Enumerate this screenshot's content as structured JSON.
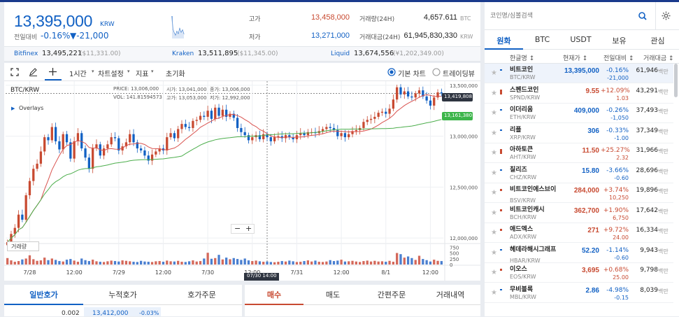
{
  "header": {
    "price": "13,395,000",
    "unit": "KRW",
    "change_label": "전일대비",
    "change_pct": "-0.16%",
    "change_abs": "▼-21,000",
    "high_label": "고가",
    "high_value": "13,458,000",
    "low_label": "저가",
    "low_value": "13,271,000",
    "vol_label": "거래량(24H)",
    "vol_value": "4,657.611",
    "vol_unit": "BTC",
    "amt_label": "거래대금(24H)",
    "amt_value": "61,945,830,330",
    "amt_unit": "KRW"
  },
  "exchanges": [
    {
      "name": "Bitfinex",
      "price": "13,495,221",
      "sub": "($11,331.00)"
    },
    {
      "name": "Kraken",
      "price": "13,511,895",
      "sub": "($11,345.00)"
    },
    {
      "name": "Liquid",
      "price": "13,674,556",
      "sub": "(¥1,202,349.00)"
    }
  ],
  "toolbar": {
    "interval": "1시간",
    "settings": "차트설정",
    "indicator": "지표",
    "reset": "초기화",
    "basic_chart": "기본 차트",
    "tradingview": "트레이딩뷰"
  },
  "chart_ui": {
    "symbol": "BTC/KRW",
    "ohlc_open": "PRICE: 13,006,000",
    "ohlc_high": "시가: 13,041,000",
    "ohlc_close": "종가: 13,006,000",
    "ohlc_vol": "VOL: 141.81594573",
    "ohlc_low": "고가: 13,053,000",
    "ohlc_prev": "저가: 12,992,000",
    "overlays": "Overlays",
    "volume_label": "거래량",
    "last_price_tag": "13,419,808",
    "ma_price_tag": "13,161,380",
    "cross_time": "07/30 14:00"
  },
  "chart_data": {
    "type": "candlestick",
    "price_ticks": [
      "13,500,000",
      "13,000,000",
      "12,500,000",
      "12,000,000"
    ],
    "price_tick_values": [
      13500000,
      13000000,
      12500000,
      12000000
    ],
    "ylim": [
      11960000,
      13540000
    ],
    "volume_ticks": [
      "750",
      "500",
      "250",
      "0"
    ],
    "volume_tick_values": [
      750,
      500,
      250,
      0
    ],
    "volume_ylim": [
      0,
      850
    ],
    "x_ticks": [
      "7/28",
      "12:00",
      "7/29",
      "12:00",
      "7/30",
      "12:00",
      "7/31",
      "12:00",
      "8/1",
      "12:00"
    ],
    "x_tick_index": [
      6,
      18,
      30,
      42,
      54,
      66,
      78,
      90,
      102,
      114
    ],
    "candle_count": 118,
    "closes": [
      11960000,
      12040000,
      12100000,
      12230000,
      12180000,
      12420000,
      12560000,
      12680000,
      12730000,
      12850000,
      12990000,
      12960000,
      13090000,
      12950000,
      12870000,
      13020000,
      12940000,
      12780000,
      12950000,
      13030000,
      12880000,
      12790000,
      12680000,
      12880000,
      12920000,
      12810000,
      12880000,
      12920000,
      12990000,
      12980000,
      12860000,
      12900000,
      12940000,
      13020000,
      12940000,
      12880000,
      12860000,
      12810000,
      12760000,
      12820000,
      12850000,
      12880000,
      12860000,
      12990000,
      13030000,
      12980000,
      13070000,
      13120000,
      13090000,
      13080000,
      13150000,
      13160000,
      13200000,
      13190000,
      13250000,
      13170000,
      13280000,
      13200000,
      13260000,
      13190000,
      13220000,
      13180000,
      13080000,
      13040000,
      13010000,
      12960000,
      12990000,
      13010000,
      12970000,
      13020000,
      12990000,
      12950000,
      12990000,
      13000000,
      12980000,
      13010000,
      12990000,
      12970000,
      13010000,
      13030000,
      13010000,
      13040000,
      13040000,
      13030000,
      13050000,
      13070000,
      13090000,
      13080000,
      13060000,
      13000000,
      13030000,
      12990000,
      13020000,
      13050000,
      13060000,
      13080000,
      13140000,
      13160000,
      13170000,
      13190000,
      13230000,
      13240000,
      13220000,
      13270000,
      13360000,
      13480000,
      13410000,
      13440000,
      13390000,
      13380000,
      13420000,
      13450000,
      13390000,
      13350000,
      13300000,
      13380000,
      13430000,
      13420000
    ],
    "volumes": [
      280,
      180,
      120,
      150,
      220,
      260,
      400,
      230,
      160,
      180,
      300,
      190,
      260,
      200,
      150,
      130,
      210,
      240,
      170,
      120,
      260,
      190,
      150,
      210,
      140,
      120,
      110,
      140,
      170,
      150,
      130,
      180,
      160,
      140,
      120,
      110,
      160,
      130,
      120,
      110,
      140,
      150,
      120,
      170,
      140,
      130,
      160,
      120,
      110,
      140,
      180,
      130,
      150,
      260,
      510,
      250,
      280,
      420,
      220,
      300,
      230,
      280,
      240,
      200,
      260,
      180,
      150,
      170,
      140,
      120,
      130,
      110,
      100,
      120,
      150,
      130,
      170,
      140,
      110,
      120,
      150,
      180,
      130,
      170,
      120,
      110,
      130,
      190,
      150,
      170,
      210,
      130,
      140,
      160,
      130,
      110,
      150,
      170,
      130,
      160,
      130,
      140,
      120,
      160,
      120,
      500,
      450,
      300,
      350,
      280,
      200,
      380,
      240,
      190,
      130,
      210,
      160,
      150
    ]
  },
  "bottom_left": {
    "tabs": [
      "일반호가",
      "누적호가",
      "호가주문"
    ],
    "row_qty": "0.002",
    "row_price": "13,412,000",
    "row_pct": "-0.03%"
  },
  "bottom_right": {
    "tabs": [
      "매수",
      "매도",
      "간편주문",
      "거래내역"
    ]
  },
  "right_panel": {
    "search_placeholder": "코인명/심볼검색",
    "tabs": [
      "원화",
      "BTC",
      "USDT",
      "보유",
      "관심"
    ],
    "columns": [
      "한글명 ↕",
      "현재가 ↕",
      "전일대비 ↕",
      "거래대금 ↕"
    ],
    "volume_unit": "백만",
    "coins": [
      {
        "name": "비트코인",
        "symbol": "BTC/KRW",
        "price": "13,395,000",
        "pct": "-0.16%",
        "chg": "-21,000",
        "vol": "61,946",
        "dir": "dn"
      },
      {
        "name": "스펜드코인",
        "symbol": "SPND/KRW",
        "price": "9.55",
        "pct": "+12.09%",
        "chg": "1.03",
        "vol": "43,291",
        "dir": "up"
      },
      {
        "name": "이더리움",
        "symbol": "ETH/KRW",
        "price": "409,000",
        "pct": "-0.26%",
        "chg": "-1,050",
        "vol": "37,493",
        "dir": "dn"
      },
      {
        "name": "리플",
        "symbol": "XRP/KRW",
        "price": "306",
        "pct": "-0.33%",
        "chg": "-1.00",
        "vol": "37,349",
        "dir": "dn"
      },
      {
        "name": "아하토큰",
        "symbol": "AHT/KRW",
        "price": "11.50",
        "pct": "+25.27%",
        "chg": "2.32",
        "vol": "31,966",
        "dir": "up"
      },
      {
        "name": "칠리즈",
        "symbol": "CHZ/KRW",
        "price": "15.80",
        "pct": "-3.66%",
        "chg": "-0.60",
        "vol": "28,696",
        "dir": "dn"
      },
      {
        "name": "비트코인에스브이",
        "symbol": "BSV/KRW",
        "price": "284,000",
        "pct": "+3.74%",
        "chg": "10,250",
        "vol": "19,896",
        "dir": "up"
      },
      {
        "name": "비트코인캐시",
        "symbol": "BCH/KRW",
        "price": "362,700",
        "pct": "+1.90%",
        "chg": "6,750",
        "vol": "17,642",
        "dir": "up"
      },
      {
        "name": "애드엑스",
        "symbol": "ADX/KRW",
        "price": "271",
        "pct": "+9.72%",
        "chg": "24.00",
        "vol": "16,334",
        "dir": "up"
      },
      {
        "name": "헤데라해시그래프",
        "symbol": "HBAR/KRW",
        "price": "52.20",
        "pct": "-1.14%",
        "chg": "-0.60",
        "vol": "9,943",
        "dir": "dn"
      },
      {
        "name": "이오스",
        "symbol": "EOS/KRW",
        "price": "3,695",
        "pct": "+0.68%",
        "chg": "25.00",
        "vol": "9,798",
        "dir": "up"
      },
      {
        "name": "무비블록",
        "symbol": "MBL/KRW",
        "price": "2.86",
        "pct": "-4.98%",
        "chg": "-0.15",
        "vol": "8,039",
        "dir": "dn"
      }
    ]
  }
}
